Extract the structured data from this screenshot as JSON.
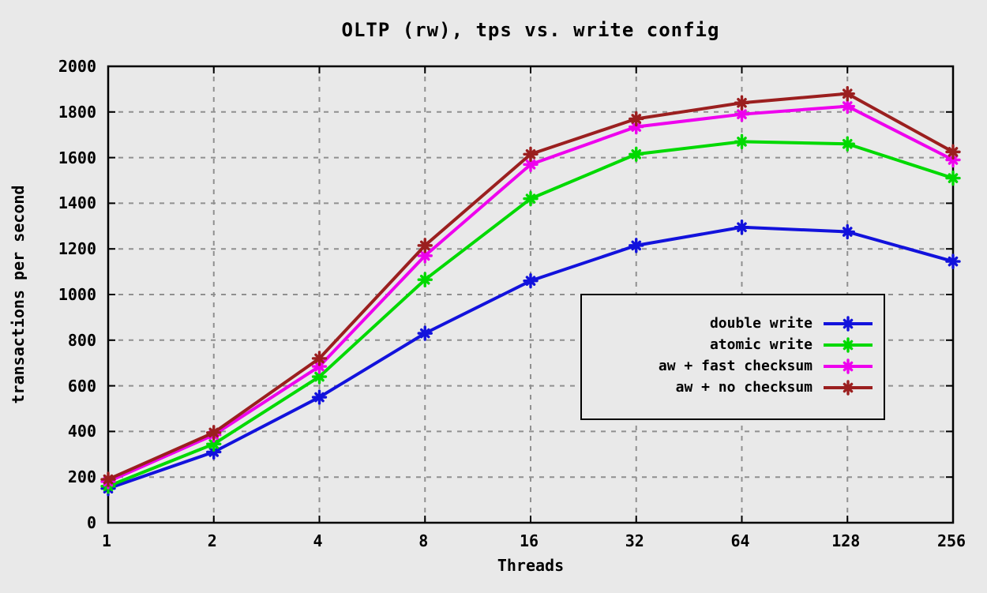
{
  "title": "OLTP (rw), tps vs. write config",
  "chart_data": {
    "type": "line",
    "title": "OLTP (rw), tps vs. write config",
    "xlabel": "Threads",
    "ylabel": "transactions per second",
    "x_scale": "log2",
    "x": [
      1,
      2,
      4,
      8,
      16,
      32,
      64,
      128,
      256
    ],
    "x_tick_labels": [
      "1",
      "2",
      "4",
      "8",
      "16",
      "32",
      "64",
      "128",
      "256"
    ],
    "ylim": [
      0,
      2000
    ],
    "y_ticks": [
      0,
      200,
      400,
      600,
      800,
      1000,
      1200,
      1400,
      1600,
      1800,
      2000
    ],
    "grid": true,
    "grid_style": "dashed",
    "legend_position": "inside-center-right",
    "series": [
      {
        "name": "double write",
        "color": "#1212dc",
        "values": [
          150,
          310,
          550,
          830,
          1060,
          1215,
          1295,
          1275,
          1145
        ]
      },
      {
        "name": "atomic write",
        "color": "#00d900",
        "values": [
          160,
          345,
          640,
          1065,
          1420,
          1615,
          1670,
          1660,
          1510
        ]
      },
      {
        "name": "aw + fast checksum",
        "color": "#ee00ee",
        "values": [
          180,
          385,
          685,
          1170,
          1570,
          1735,
          1790,
          1825,
          1590
        ]
      },
      {
        "name": "aw + no checksum",
        "color": "#9b1f1f",
        "values": [
          190,
          395,
          720,
          1215,
          1615,
          1770,
          1840,
          1880,
          1625
        ]
      }
    ]
  },
  "colors": {
    "background": "#e9e9e9",
    "plot_border": "#000000",
    "gridline": "#909090",
    "text": "#000000",
    "legend_background": "#e9e9e9"
  }
}
